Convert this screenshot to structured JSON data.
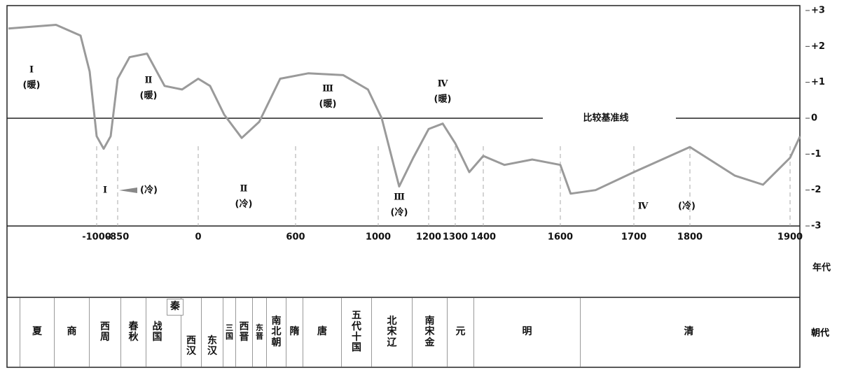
{
  "chart_data": {
    "type": "line",
    "x": [
      -1630,
      -1290,
      -1115,
      -1050,
      -1000,
      -950,
      -900,
      -850,
      -724,
      -540,
      -355,
      -170,
      0,
      73,
      160,
      268,
      376,
      505,
      661,
      831,
      950,
      1014,
      1083,
      1139,
      1200,
      1253,
      1300,
      1350,
      1400,
      1455,
      1527,
      1600,
      1614,
      1648,
      1700,
      1800,
      1845,
      1873,
      1900,
      1910
    ],
    "series": [
      {
        "color": "#9a9a9a",
        "values": [
          2.5,
          2.6,
          2.3,
          1.3,
          -0.5,
          -0.85,
          -0.5,
          1.1,
          1.7,
          1.8,
          0.9,
          0.8,
          1.1,
          0.9,
          0.1,
          -0.55,
          -0.1,
          1.1,
          1.25,
          1.2,
          0.8,
          0,
          -1.9,
          -1.1,
          -0.3,
          -0.15,
          -0.7,
          -1.5,
          -1.05,
          -1.3,
          -1.15,
          -1.3,
          -2.1,
          -2.0,
          -1.5,
          -0.8,
          -1.6,
          -1.85,
          -1.1,
          -0.5
        ]
      }
    ],
    "xticks": [
      {
        "value": -1000,
        "label": "-1000"
      },
      {
        "value": -850,
        "label": "-850"
      },
      0,
      600,
      1000,
      1200,
      1300,
      1400,
      1600,
      1700,
      1800,
      1900
    ],
    "ylim": [
      -3,
      3
    ],
    "yticks": [
      {
        "value": 3,
        "label": "+3"
      },
      {
        "value": 2,
        "label": "+2"
      },
      {
        "value": 1,
        "label": "+1"
      },
      0,
      -1,
      -2,
      -3
    ],
    "x_label": "年代",
    "baseline_label": "比较基准线",
    "annotations": [
      {
        "label": "Ⅰ",
        "note": "(暖)"
      },
      {
        "label": "Ⅱ",
        "note": "(暖)"
      },
      {
        "label": "Ⅲ",
        "note": "(暖)"
      },
      {
        "label": "Ⅳ",
        "note": "(暖)"
      },
      {
        "label": "Ⅰ",
        "note": "(冷)"
      },
      {
        "label": "Ⅱ",
        "note": "(冷)"
      },
      {
        "label": "Ⅲ",
        "note": "(冷)"
      },
      {
        "label": "Ⅳ",
        "note": "(冷)"
      }
    ]
  },
  "dynasty_row": {
    "label": "朝代",
    "dynasties": [
      "夏",
      "商",
      "西周",
      "春秋",
      "战国",
      "秦",
      "西汉",
      "东汉",
      "三国",
      "西晋",
      "东晋",
      "南北朝",
      "隋",
      "唐",
      "五代十国",
      "北宋辽",
      "南宋金",
      "元",
      "明",
      "清"
    ]
  }
}
